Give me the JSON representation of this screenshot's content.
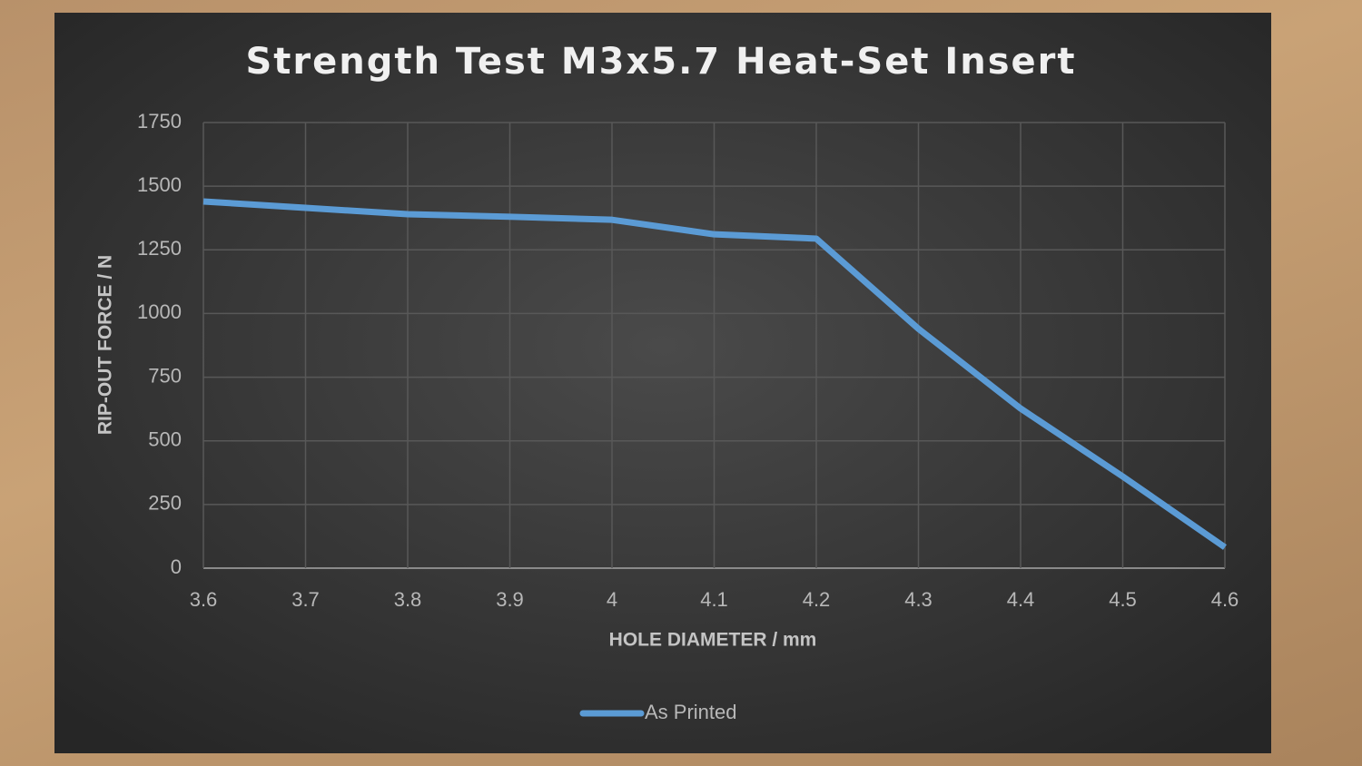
{
  "chart_data": {
    "type": "line",
    "title": "Strength Test M3x5.7 Heat-Set Insert",
    "x_label": "HOLE DIAMETER / mm",
    "y_label": "RIP-OUT FORCE / N",
    "x": [
      3.6,
      3.7,
      3.8,
      3.9,
      4,
      4.1,
      4.2,
      4.3,
      4.4,
      4.5,
      4.6
    ],
    "series": [
      {
        "name": "As Printed",
        "color": "#5b9bd5",
        "values": [
          1440,
          1415,
          1390,
          1380,
          1368,
          1311,
          1294,
          940,
          627,
          360,
          82
        ]
      }
    ],
    "xlim": [
      3.6,
      4.6
    ],
    "xticks": [
      3.6,
      3.7,
      3.8,
      3.9,
      4,
      4.1,
      4.2,
      4.3,
      4.4,
      4.5,
      4.6
    ],
    "ylim": [
      0,
      1750
    ],
    "yticks": [
      0,
      250,
      500,
      750,
      1000,
      1250,
      1500,
      1750
    ],
    "grid": true,
    "legend": "bottom"
  }
}
